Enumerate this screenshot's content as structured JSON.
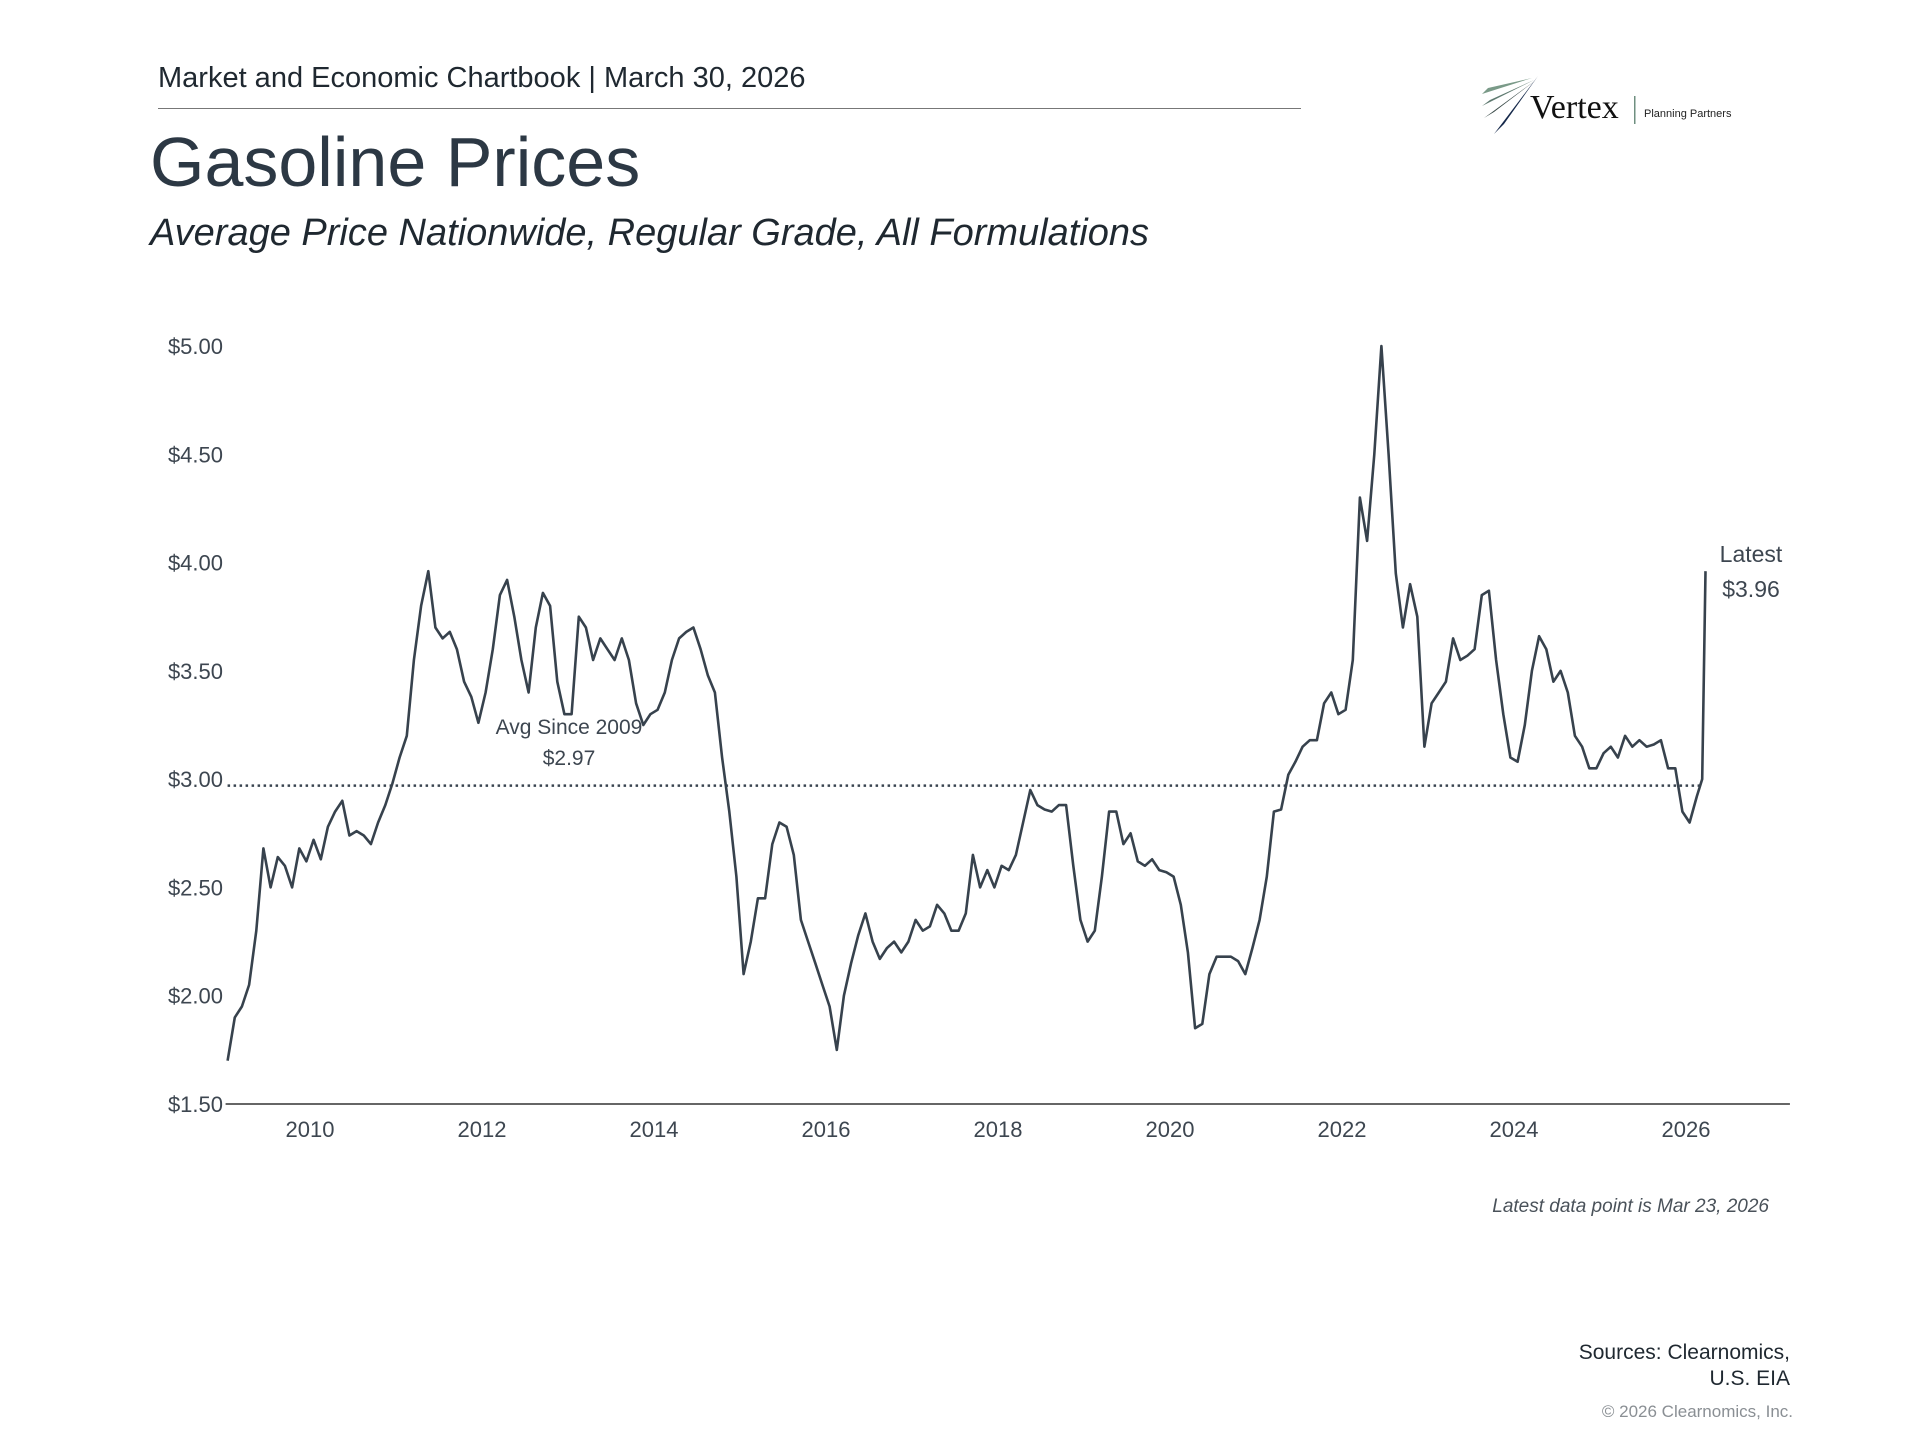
{
  "header": {
    "chartbook": "Market and Economic Chartbook | March 30, 2026",
    "title": "Gasoline Prices",
    "subtitle": "Average Price Nationwide, Regular Grade, All Formulations"
  },
  "logo": {
    "name": "Vertex",
    "tagline": "Planning Partners",
    "colors": [
      "#7a9a88",
      "#3a4a48",
      "#15284a"
    ]
  },
  "footer": {
    "note": "Latest data point is Mar 23, 2026",
    "sources_line1": "Sources: Clearnomics,",
    "sources_line2": "U.S. EIA",
    "copyright": "© 2026 Clearnomics, Inc."
  },
  "chart_data": {
    "type": "line",
    "title": "Gasoline Prices",
    "subtitle": "Average Price Nationwide, Regular Grade, All Formulations",
    "xlabel": "",
    "ylabel": "",
    "ylim": [
      1.5,
      5.0
    ],
    "xlim": [
      "2009-01",
      "2027-03"
    ],
    "y_ticks": [
      "$1.50",
      "$2.00",
      "$2.50",
      "$3.00",
      "$3.50",
      "$4.00",
      "$4.50",
      "$5.00"
    ],
    "y_tick_values": [
      1.5,
      2.0,
      2.5,
      3.0,
      3.5,
      4.0,
      4.5,
      5.0
    ],
    "x_ticks": [
      "2010",
      "2012",
      "2014",
      "2016",
      "2018",
      "2020",
      "2022",
      "2024",
      "2026"
    ],
    "grid": false,
    "line_color": "#37424d",
    "average": {
      "value": 2.97,
      "label_line1": "Avg Since 2009",
      "label_line2": "$2.97",
      "style": "dotted"
    },
    "latest": {
      "value": 3.96,
      "label_line1": "Latest",
      "label_line2": "$3.96",
      "date": "2026-03-23"
    },
    "series": [
      {
        "x": [
          "2009-01",
          "2009-02",
          "2009-03",
          "2009-04",
          "2009-05",
          "2009-06",
          "2009-07",
          "2009-08",
          "2009-09",
          "2009-10",
          "2009-11",
          "2009-12",
          "2010-01",
          "2010-02",
          "2010-03",
          "2010-04",
          "2010-05",
          "2010-06",
          "2010-07",
          "2010-08",
          "2010-09",
          "2010-10",
          "2010-11",
          "2010-12",
          "2011-01",
          "2011-02",
          "2011-03",
          "2011-04",
          "2011-05",
          "2011-06",
          "2011-07",
          "2011-08",
          "2011-09",
          "2011-10",
          "2011-11",
          "2011-12",
          "2012-01",
          "2012-02",
          "2012-03",
          "2012-04",
          "2012-05",
          "2012-06",
          "2012-07",
          "2012-08",
          "2012-09",
          "2012-10",
          "2012-11",
          "2012-12",
          "2013-01",
          "2013-02",
          "2013-03",
          "2013-04",
          "2013-05",
          "2013-06",
          "2013-07",
          "2013-08",
          "2013-09",
          "2013-10",
          "2013-11",
          "2013-12",
          "2014-01",
          "2014-02",
          "2014-03",
          "2014-04",
          "2014-05",
          "2014-06",
          "2014-07",
          "2014-08",
          "2014-09",
          "2014-10",
          "2014-11",
          "2014-12",
          "2015-01",
          "2015-02",
          "2015-03",
          "2015-04",
          "2015-05",
          "2015-06",
          "2015-07",
          "2015-08",
          "2015-09",
          "2015-10",
          "2015-11",
          "2015-12",
          "2016-01",
          "2016-02",
          "2016-03",
          "2016-04",
          "2016-05",
          "2016-06",
          "2016-07",
          "2016-08",
          "2016-09",
          "2016-10",
          "2016-11",
          "2016-12",
          "2017-01",
          "2017-02",
          "2017-03",
          "2017-04",
          "2017-05",
          "2017-06",
          "2017-07",
          "2017-08",
          "2017-09",
          "2017-10",
          "2017-11",
          "2017-12",
          "2018-01",
          "2018-02",
          "2018-03",
          "2018-04",
          "2018-05",
          "2018-06",
          "2018-07",
          "2018-08",
          "2018-09",
          "2018-10",
          "2018-11",
          "2018-12",
          "2019-01",
          "2019-02",
          "2019-03",
          "2019-04",
          "2019-05",
          "2019-06",
          "2019-07",
          "2019-08",
          "2019-09",
          "2019-10",
          "2019-11",
          "2019-12",
          "2020-01",
          "2020-02",
          "2020-03",
          "2020-04",
          "2020-05",
          "2020-06",
          "2020-07",
          "2020-08",
          "2020-09",
          "2020-10",
          "2020-11",
          "2020-12",
          "2021-01",
          "2021-02",
          "2021-03",
          "2021-04",
          "2021-05",
          "2021-06",
          "2021-07",
          "2021-08",
          "2021-09",
          "2021-10",
          "2021-11",
          "2021-12",
          "2022-01",
          "2022-02",
          "2022-03",
          "2022-04",
          "2022-05",
          "2022-06",
          "2022-07",
          "2022-08",
          "2022-09",
          "2022-10",
          "2022-11",
          "2022-12",
          "2023-01",
          "2023-02",
          "2023-03",
          "2023-04",
          "2023-05",
          "2023-06",
          "2023-07",
          "2023-08",
          "2023-09",
          "2023-10",
          "2023-11",
          "2023-12",
          "2024-01",
          "2024-02",
          "2024-03",
          "2024-04",
          "2024-05",
          "2024-06",
          "2024-07",
          "2024-08",
          "2024-09",
          "2024-10",
          "2024-11",
          "2024-12",
          "2025-01",
          "2025-02",
          "2025-03",
          "2025-04",
          "2025-05",
          "2025-06",
          "2025-07",
          "2025-08",
          "2025-09",
          "2025-10",
          "2025-11",
          "2025-12",
          "2026-01",
          "2026-02",
          "2026-03-09",
          "2026-03-23"
        ],
        "values": [
          1.7,
          1.9,
          1.95,
          2.05,
          2.3,
          2.68,
          2.5,
          2.64,
          2.6,
          2.5,
          2.68,
          2.62,
          2.72,
          2.63,
          2.78,
          2.85,
          2.9,
          2.74,
          2.76,
          2.74,
          2.7,
          2.8,
          2.88,
          2.98,
          3.1,
          3.2,
          3.55,
          3.8,
          3.96,
          3.7,
          3.65,
          3.68,
          3.6,
          3.45,
          3.38,
          3.26,
          3.4,
          3.6,
          3.85,
          3.92,
          3.75,
          3.55,
          3.4,
          3.7,
          3.86,
          3.8,
          3.45,
          3.3,
          3.3,
          3.75,
          3.7,
          3.55,
          3.65,
          3.6,
          3.55,
          3.65,
          3.55,
          3.35,
          3.25,
          3.3,
          3.32,
          3.4,
          3.55,
          3.65,
          3.68,
          3.7,
          3.6,
          3.48,
          3.4,
          3.1,
          2.85,
          2.55,
          2.1,
          2.25,
          2.45,
          2.45,
          2.7,
          2.8,
          2.78,
          2.65,
          2.35,
          2.25,
          2.15,
          2.05,
          1.95,
          1.75,
          2.0,
          2.15,
          2.28,
          2.38,
          2.25,
          2.17,
          2.22,
          2.25,
          2.2,
          2.25,
          2.35,
          2.3,
          2.32,
          2.42,
          2.38,
          2.3,
          2.3,
          2.38,
          2.65,
          2.5,
          2.58,
          2.5,
          2.6,
          2.58,
          2.65,
          2.8,
          2.95,
          2.88,
          2.86,
          2.85,
          2.88,
          2.88,
          2.6,
          2.35,
          2.25,
          2.3,
          2.55,
          2.85,
          2.85,
          2.7,
          2.75,
          2.62,
          2.6,
          2.63,
          2.58,
          2.57,
          2.55,
          2.42,
          2.2,
          1.85,
          1.87,
          2.1,
          2.18,
          2.18,
          2.18,
          2.16,
          2.1,
          2.22,
          2.35,
          2.55,
          2.85,
          2.86,
          3.02,
          3.08,
          3.15,
          3.18,
          3.18,
          3.35,
          3.4,
          3.3,
          3.32,
          3.55,
          4.3,
          4.1,
          4.5,
          5.0,
          4.5,
          3.95,
          3.7,
          3.9,
          3.75,
          3.15,
          3.35,
          3.4,
          3.45,
          3.65,
          3.55,
          3.57,
          3.6,
          3.85,
          3.87,
          3.55,
          3.3,
          3.1,
          3.08,
          3.25,
          3.5,
          3.66,
          3.6,
          3.45,
          3.5,
          3.4,
          3.2,
          3.15,
          3.05,
          3.05,
          3.12,
          3.15,
          3.1,
          3.2,
          3.15,
          3.18,
          3.15,
          3.16,
          3.18,
          3.05,
          3.05,
          2.85,
          2.8,
          2.92,
          3.0,
          3.96
        ]
      }
    ]
  }
}
